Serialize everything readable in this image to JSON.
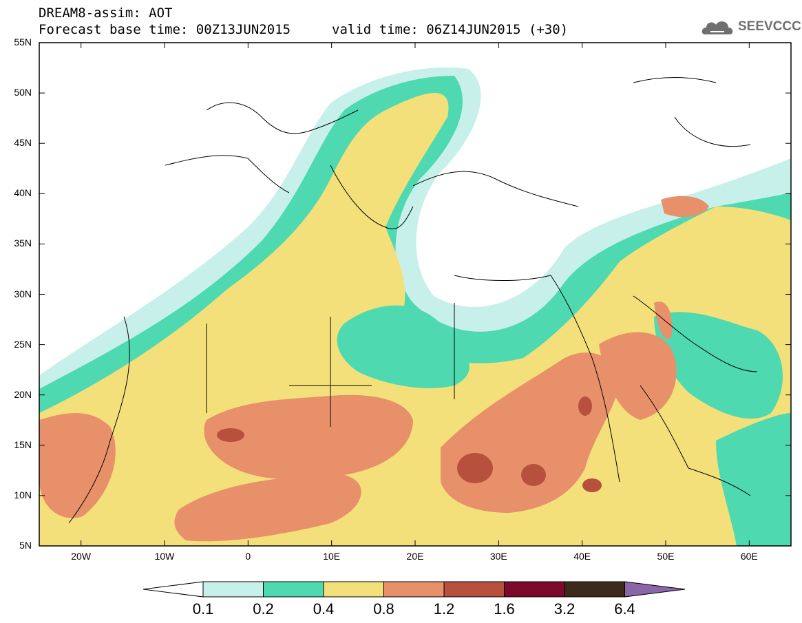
{
  "header": {
    "title": "DREAM8-assim: AOT",
    "base_time": "Forecast base time: 00Z13JUN2015",
    "valid_time": "valid time: 06Z14JUN2015 (+30)",
    "logo_text": "SEEVCCC"
  },
  "map": {
    "lat_ticks": [
      "55N",
      "50N",
      "45N",
      "40N",
      "35N",
      "30N",
      "25N",
      "20N",
      "15N",
      "10N",
      "5N"
    ],
    "lon_ticks": [
      "20W",
      "10W",
      "0",
      "10E",
      "20E",
      "30E",
      "40E",
      "50E",
      "60E"
    ],
    "lon_range": [
      -25,
      65
    ],
    "lat_range": [
      5,
      55
    ]
  },
  "colorbar": {
    "labels": [
      "0.1",
      "0.2",
      "0.4",
      "0.8",
      "1.2",
      "1.6",
      "3.2",
      "6.4"
    ],
    "colors": [
      "#ffffff",
      "#c8f0ea",
      "#4fd9b0",
      "#f4e07a",
      "#e8906a",
      "#b8503e",
      "#7c0a2c",
      "#3e2a1a",
      "#8a66a8"
    ]
  }
}
